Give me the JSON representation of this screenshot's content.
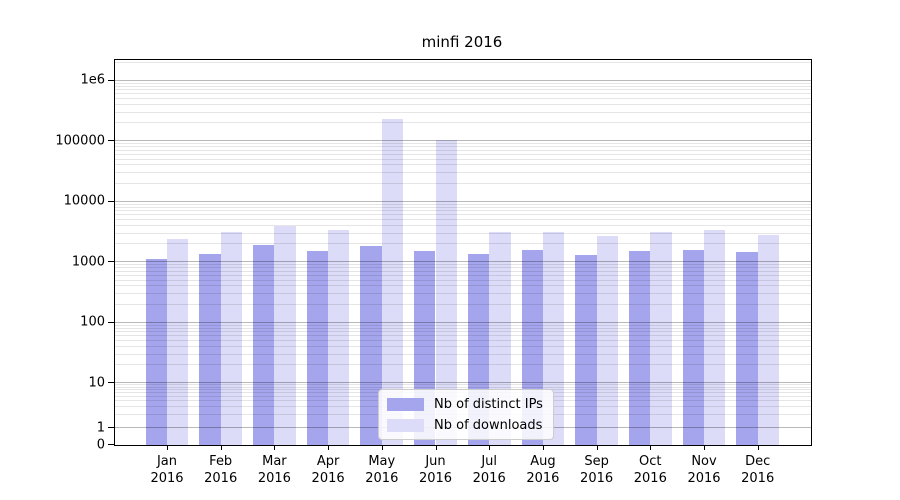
{
  "chart_data": {
    "type": "bar",
    "title": "minfi 2016",
    "year": "2016",
    "categories": [
      "Jan",
      "Feb",
      "Mar",
      "Apr",
      "May",
      "Jun",
      "Jul",
      "Aug",
      "Sep",
      "Oct",
      "Nov",
      "Dec"
    ],
    "series": [
      {
        "name": "Nb of distinct IPs",
        "color": "#a5a5ee",
        "values": [
          1130,
          1400,
          1940,
          1560,
          1870,
          1545,
          1400,
          1620,
          1310,
          1550,
          1620,
          1490
        ]
      },
      {
        "name": "Nb of downloads",
        "color": "#dcdcf8",
        "values": [
          2440,
          3140,
          4040,
          3470,
          235000,
          106000,
          3210,
          3210,
          2760,
          3180,
          3470,
          2860
        ]
      }
    ],
    "yscale": "symlog",
    "ylim": [
      0,
      2000000
    ],
    "yticks": [
      {
        "value": 0,
        "label": "0"
      },
      {
        "value": 1,
        "label": "1"
      },
      {
        "value": 10,
        "label": "10"
      },
      {
        "value": 100,
        "label": "100"
      },
      {
        "value": 1000,
        "label": "1000"
      },
      {
        "value": 10000,
        "label": "10000"
      },
      {
        "value": 100000,
        "label": "100000"
      },
      {
        "value": 1000000,
        "label": "1e6"
      }
    ],
    "grid": true,
    "legend_position": "lower center"
  }
}
